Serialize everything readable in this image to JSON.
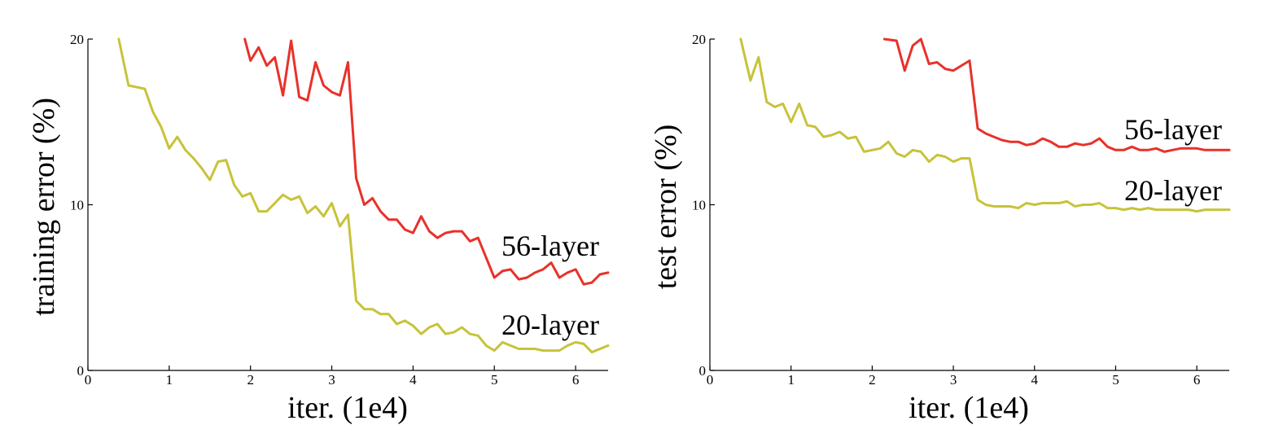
{
  "chart_data": [
    {
      "type": "line",
      "xlabel": "iter. (1e4)",
      "ylabel": "training error (%)",
      "xlim": [
        0,
        6.4
      ],
      "ylim": [
        0,
        20
      ],
      "xticks": [
        0,
        1,
        2,
        3,
        4,
        5,
        6
      ],
      "yticks": [
        0,
        10,
        20
      ],
      "series": [
        {
          "name": "56-layer",
          "color": "#e8312a",
          "x": [
            1.93,
            2.0,
            2.1,
            2.2,
            2.3,
            2.4,
            2.5,
            2.6,
            2.7,
            2.8,
            2.9,
            3.0,
            3.1,
            3.2,
            3.3,
            3.4,
            3.5,
            3.6,
            3.7,
            3.8,
            3.9,
            4.0,
            4.1,
            4.2,
            4.3,
            4.4,
            4.5,
            4.6,
            4.7,
            4.8,
            4.9,
            5.0,
            5.1,
            5.2,
            5.3,
            5.4,
            5.5,
            5.6,
            5.7,
            5.8,
            5.9,
            6.0,
            6.1,
            6.2,
            6.3,
            6.4
          ],
          "y": [
            20.0,
            18.7,
            19.5,
            18.4,
            18.9,
            16.6,
            19.9,
            16.5,
            16.3,
            18.6,
            17.2,
            16.8,
            16.6,
            18.6,
            11.6,
            10.0,
            10.4,
            9.6,
            9.1,
            9.1,
            8.5,
            8.3,
            9.3,
            8.4,
            8.0,
            8.3,
            8.4,
            8.4,
            7.8,
            8.0,
            6.8,
            5.6,
            6.0,
            6.1,
            5.5,
            5.6,
            5.9,
            6.1,
            6.5,
            5.6,
            5.9,
            6.1,
            5.2,
            5.3,
            5.8,
            5.9
          ]
        },
        {
          "name": "20-layer",
          "color": "#c7c33a",
          "x": [
            0.38,
            0.5,
            0.6,
            0.7,
            0.8,
            0.9,
            1.0,
            1.1,
            1.2,
            1.3,
            1.4,
            1.5,
            1.6,
            1.7,
            1.8,
            1.9,
            2.0,
            2.1,
            2.2,
            2.3,
            2.4,
            2.5,
            2.6,
            2.7,
            2.8,
            2.9,
            3.0,
            3.1,
            3.2,
            3.3,
            3.4,
            3.5,
            3.6,
            3.7,
            3.8,
            3.9,
            4.0,
            4.1,
            4.2,
            4.3,
            4.4,
            4.5,
            4.6,
            4.7,
            4.8,
            4.9,
            5.0,
            5.1,
            5.2,
            5.3,
            5.4,
            5.5,
            5.6,
            5.7,
            5.8,
            5.9,
            6.0,
            6.1,
            6.2,
            6.3,
            6.4
          ],
          "y": [
            20.0,
            17.2,
            17.1,
            17.0,
            15.6,
            14.7,
            13.4,
            14.1,
            13.3,
            12.8,
            12.2,
            11.5,
            12.6,
            12.7,
            11.2,
            10.5,
            10.7,
            9.6,
            9.6,
            10.1,
            10.6,
            10.3,
            10.5,
            9.5,
            9.9,
            9.3,
            10.1,
            8.7,
            9.4,
            4.2,
            3.7,
            3.7,
            3.4,
            3.4,
            2.8,
            3.0,
            2.7,
            2.2,
            2.6,
            2.8,
            2.2,
            2.3,
            2.6,
            2.2,
            2.1,
            1.5,
            1.2,
            1.7,
            1.5,
            1.3,
            1.3,
            1.3,
            1.2,
            1.2,
            1.2,
            1.5,
            1.7,
            1.6,
            1.1,
            1.3,
            1.5
          ]
        }
      ],
      "annotations": [
        "56-layer",
        "20-layer"
      ]
    },
    {
      "type": "line",
      "xlabel": "iter. (1e4)",
      "ylabel": "test error (%)",
      "xlim": [
        0,
        6.4
      ],
      "ylim": [
        0,
        20
      ],
      "xticks": [
        0,
        1,
        2,
        3,
        4,
        5,
        6
      ],
      "yticks": [
        0,
        10,
        20
      ],
      "series": [
        {
          "name": "56-layer",
          "color": "#e8312a",
          "x": [
            2.15,
            2.3,
            2.4,
            2.5,
            2.6,
            2.7,
            2.8,
            2.9,
            3.0,
            3.1,
            3.2,
            3.3,
            3.4,
            3.5,
            3.6,
            3.7,
            3.8,
            3.9,
            4.0,
            4.1,
            4.2,
            4.3,
            4.4,
            4.5,
            4.6,
            4.7,
            4.8,
            4.9,
            5.0,
            5.1,
            5.2,
            5.3,
            5.4,
            5.5,
            5.6,
            5.7,
            5.8,
            5.9,
            6.0,
            6.1,
            6.2,
            6.3,
            6.4
          ],
          "y": [
            20.0,
            19.9,
            18.1,
            19.6,
            20.0,
            18.5,
            18.6,
            18.2,
            18.1,
            18.4,
            18.7,
            14.6,
            14.3,
            14.1,
            13.9,
            13.8,
            13.8,
            13.6,
            13.7,
            14.0,
            13.8,
            13.5,
            13.5,
            13.7,
            13.6,
            13.7,
            14.0,
            13.5,
            13.3,
            13.3,
            13.5,
            13.3,
            13.3,
            13.4,
            13.2,
            13.3,
            13.4,
            13.4,
            13.4,
            13.3,
            13.3,
            13.3,
            13.3
          ]
        },
        {
          "name": "20-layer",
          "color": "#c7c33a",
          "x": [
            0.38,
            0.5,
            0.6,
            0.7,
            0.8,
            0.9,
            1.0,
            1.1,
            1.2,
            1.3,
            1.4,
            1.5,
            1.6,
            1.7,
            1.8,
            1.9,
            2.0,
            2.1,
            2.2,
            2.3,
            2.4,
            2.5,
            2.6,
            2.7,
            2.8,
            2.9,
            3.0,
            3.1,
            3.2,
            3.3,
            3.4,
            3.5,
            3.6,
            3.7,
            3.8,
            3.9,
            4.0,
            4.1,
            4.2,
            4.3,
            4.4,
            4.5,
            4.6,
            4.7,
            4.8,
            4.9,
            5.0,
            5.1,
            5.2,
            5.3,
            5.4,
            5.5,
            5.6,
            5.7,
            5.8,
            5.9,
            6.0,
            6.1,
            6.2,
            6.3,
            6.4
          ],
          "y": [
            20.0,
            17.5,
            18.9,
            16.2,
            15.9,
            16.1,
            15.0,
            16.1,
            14.8,
            14.7,
            14.1,
            14.2,
            14.4,
            14.0,
            14.1,
            13.2,
            13.3,
            13.4,
            13.8,
            13.1,
            12.9,
            13.3,
            13.2,
            12.6,
            13.0,
            12.9,
            12.6,
            12.8,
            12.8,
            10.3,
            10.0,
            9.9,
            9.9,
            9.9,
            9.8,
            10.1,
            10.0,
            10.1,
            10.1,
            10.1,
            10.2,
            9.9,
            10.0,
            10.0,
            10.1,
            9.8,
            9.8,
            9.7,
            9.8,
            9.7,
            9.8,
            9.7,
            9.7,
            9.7,
            9.7,
            9.7,
            9.6,
            9.7,
            9.7,
            9.7,
            9.7
          ]
        }
      ],
      "annotations": [
        "56-layer",
        "20-layer"
      ]
    }
  ]
}
